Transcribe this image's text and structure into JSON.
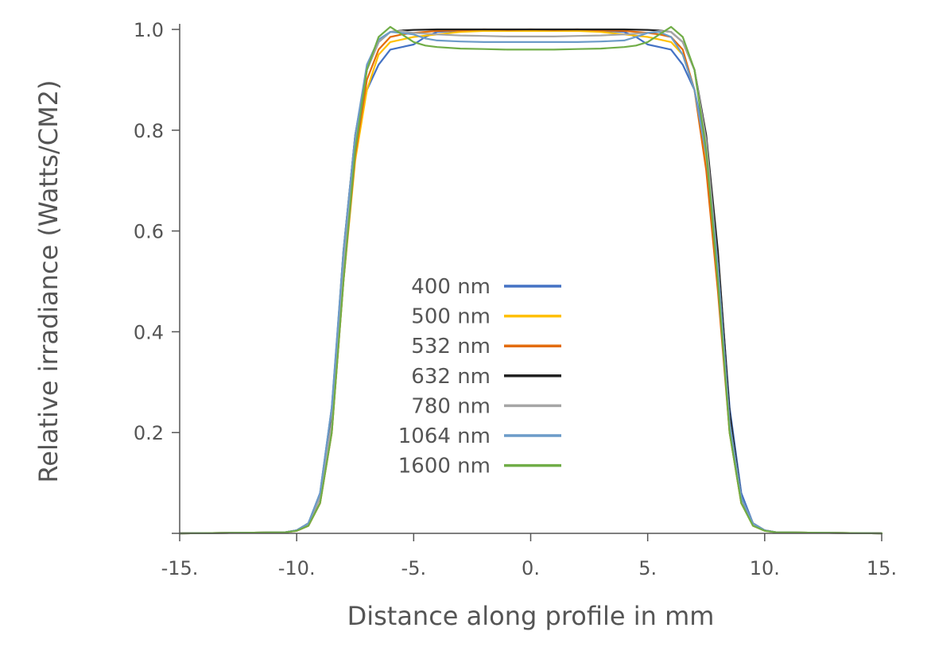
{
  "chart_data": {
    "type": "line",
    "title": "",
    "xlabel": "Distance along profile in mm",
    "ylabel": "Relative irradiance (Watts/CM2)",
    "xlim": [
      -15,
      15
    ],
    "ylim": [
      0,
      1.0
    ],
    "xticks": [
      -15,
      -10,
      -5,
      0,
      5,
      10,
      15
    ],
    "xtick_labels": [
      "-15.",
      "-10.",
      "-5.",
      "0.",
      "5.",
      "10.",
      "15."
    ],
    "yticks": [
      0.2,
      0.4,
      0.6,
      0.8,
      1.0
    ],
    "ytick_labels": [
      "0.2",
      "0.4",
      "0.6",
      "0.8",
      "1.0"
    ],
    "grid": false,
    "legend_position": "center",
    "series": [
      {
        "name": "400 nm",
        "color": "#4472C4",
        "x": [
          -15,
          -10.5,
          -10,
          -9.5,
          -9,
          -8.5,
          -8,
          -7.5,
          -7,
          -6.5,
          -6,
          -5.5,
          -5,
          -4.5,
          -4,
          -3,
          -2,
          -1,
          0,
          1,
          2,
          3,
          4,
          4.5,
          5,
          5.5,
          6,
          6.5,
          7,
          7.5,
          8,
          8.5,
          9,
          9.5,
          10,
          10.5,
          15
        ],
        "y": [
          0.0,
          0.002,
          0.006,
          0.02,
          0.08,
          0.25,
          0.55,
          0.77,
          0.88,
          0.93,
          0.96,
          0.965,
          0.97,
          0.985,
          0.995,
          0.997,
          0.997,
          0.997,
          0.997,
          0.997,
          0.997,
          0.997,
          0.995,
          0.985,
          0.97,
          0.965,
          0.96,
          0.93,
          0.88,
          0.77,
          0.55,
          0.25,
          0.08,
          0.02,
          0.006,
          0.002,
          0.0
        ]
      },
      {
        "name": "500 nm",
        "color": "#FFC000",
        "x": [
          -15,
          -10.5,
          -10,
          -9.5,
          -9,
          -8.5,
          -8,
          -7.5,
          -7,
          -6.5,
          -6,
          -5.5,
          -5,
          -4,
          -3,
          -2,
          -1,
          0,
          1,
          2,
          3,
          4,
          5,
          5.5,
          6,
          6.5,
          7,
          7.5,
          8,
          8.5,
          9,
          9.5,
          10,
          10.5,
          15
        ],
        "y": [
          0.0,
          0.002,
          0.005,
          0.015,
          0.06,
          0.2,
          0.5,
          0.74,
          0.88,
          0.95,
          0.975,
          0.98,
          0.985,
          0.99,
          0.995,
          0.997,
          0.997,
          0.997,
          0.997,
          0.997,
          0.995,
          0.99,
          0.985,
          0.98,
          0.975,
          0.95,
          0.88,
          0.74,
          0.5,
          0.2,
          0.06,
          0.015,
          0.005,
          0.002,
          0.0
        ]
      },
      {
        "name": "532 nm",
        "color": "#E36C0A",
        "x": [
          -15,
          -10.5,
          -10,
          -9.5,
          -9,
          -8.5,
          -8,
          -7.5,
          -7,
          -6.5,
          -6,
          -5.5,
          -5,
          -4,
          -3,
          -2,
          -1,
          0,
          1,
          2,
          3,
          4,
          5,
          5.5,
          6,
          6.5,
          7,
          7.5,
          8,
          8.5,
          9,
          9.5,
          10,
          10.5,
          15
        ],
        "y": [
          0.0,
          0.002,
          0.005,
          0.015,
          0.06,
          0.2,
          0.5,
          0.75,
          0.9,
          0.96,
          0.985,
          0.99,
          0.993,
          0.997,
          0.998,
          1.0,
          0.999,
          1.0,
          0.999,
          1.0,
          0.998,
          0.997,
          0.993,
          0.99,
          0.985,
          0.96,
          0.88,
          0.72,
          0.48,
          0.2,
          0.06,
          0.02,
          0.006,
          0.002,
          0.0
        ]
      },
      {
        "name": "632 nm",
        "color": "#222222",
        "x": [
          -15,
          -10.5,
          -10,
          -9.5,
          -9,
          -8.5,
          -8,
          -7.5,
          -7,
          -6.5,
          -6,
          -5.5,
          -5,
          -4,
          -3,
          -2,
          -1,
          0,
          1,
          2,
          3,
          4,
          5,
          5.5,
          6,
          6.5,
          7,
          7.5,
          8,
          8.5,
          9,
          9.5,
          10,
          10.5,
          15
        ],
        "y": [
          0.0,
          0.002,
          0.006,
          0.02,
          0.07,
          0.24,
          0.56,
          0.79,
          0.92,
          0.975,
          0.995,
          0.998,
          0.999,
          1.0,
          1.0,
          1.0,
          1.0,
          1.0,
          1.0,
          1.0,
          1.0,
          1.0,
          0.999,
          0.998,
          0.995,
          0.975,
          0.92,
          0.79,
          0.56,
          0.24,
          0.07,
          0.02,
          0.006,
          0.002,
          0.0
        ]
      },
      {
        "name": "780 nm",
        "color": "#A6A6A6",
        "x": [
          -15,
          -10.5,
          -10,
          -9.5,
          -9,
          -8.5,
          -8,
          -7.5,
          -7,
          -6.5,
          -6,
          -5.5,
          -5,
          -4,
          -3,
          -2,
          -1,
          0,
          1,
          2,
          3,
          4,
          5,
          5.5,
          6,
          6.5,
          7,
          7.5,
          8,
          8.5,
          9,
          9.5,
          10,
          10.5,
          15
        ],
        "y": [
          0.0,
          0.002,
          0.006,
          0.02,
          0.07,
          0.22,
          0.53,
          0.78,
          0.92,
          0.975,
          0.995,
          0.997,
          0.993,
          0.99,
          0.988,
          0.987,
          0.986,
          0.986,
          0.986,
          0.987,
          0.988,
          0.99,
          0.993,
          0.997,
          0.995,
          0.975,
          0.92,
          0.78,
          0.53,
          0.22,
          0.07,
          0.02,
          0.006,
          0.002,
          0.0
        ]
      },
      {
        "name": "1064 nm",
        "color": "#6C9BC8",
        "x": [
          -15,
          -10.5,
          -10,
          -9.5,
          -9,
          -8.5,
          -8,
          -7.5,
          -7,
          -6.5,
          -6,
          -5.5,
          -5,
          -4.5,
          -4,
          -3,
          -2,
          -1,
          0,
          1,
          2,
          3,
          4,
          4.5,
          5,
          5.5,
          6,
          6.5,
          7,
          7.5,
          8,
          8.5,
          9,
          9.5,
          10,
          10.5,
          15
        ],
        "y": [
          0.0,
          0.002,
          0.006,
          0.02,
          0.08,
          0.25,
          0.56,
          0.79,
          0.93,
          0.98,
          0.995,
          0.993,
          0.99,
          0.982,
          0.978,
          0.976,
          0.975,
          0.975,
          0.975,
          0.975,
          0.975,
          0.976,
          0.978,
          0.985,
          0.993,
          0.995,
          0.985,
          0.95,
          0.88,
          0.75,
          0.53,
          0.22,
          0.07,
          0.02,
          0.006,
          0.002,
          0.0
        ]
      },
      {
        "name": "1600 nm",
        "color": "#70AD47",
        "x": [
          -15,
          -10.5,
          -10,
          -9.5,
          -9,
          -8.5,
          -8,
          -7.5,
          -7,
          -6.5,
          -6,
          -5.5,
          -5,
          -4.5,
          -4,
          -3,
          -2,
          -1,
          0,
          1,
          2,
          3,
          4,
          4.5,
          5,
          5.5,
          6,
          6.5,
          7,
          7.5,
          8,
          8.5,
          9,
          9.5,
          10,
          10.5,
          15
        ],
        "y": [
          0.0,
          0.002,
          0.005,
          0.015,
          0.06,
          0.2,
          0.5,
          0.76,
          0.92,
          0.985,
          1.005,
          0.99,
          0.975,
          0.968,
          0.965,
          0.962,
          0.961,
          0.96,
          0.96,
          0.96,
          0.961,
          0.962,
          0.965,
          0.968,
          0.975,
          0.99,
          1.005,
          0.985,
          0.92,
          0.76,
          0.5,
          0.2,
          0.06,
          0.015,
          0.005,
          0.002,
          0.0
        ]
      }
    ]
  }
}
